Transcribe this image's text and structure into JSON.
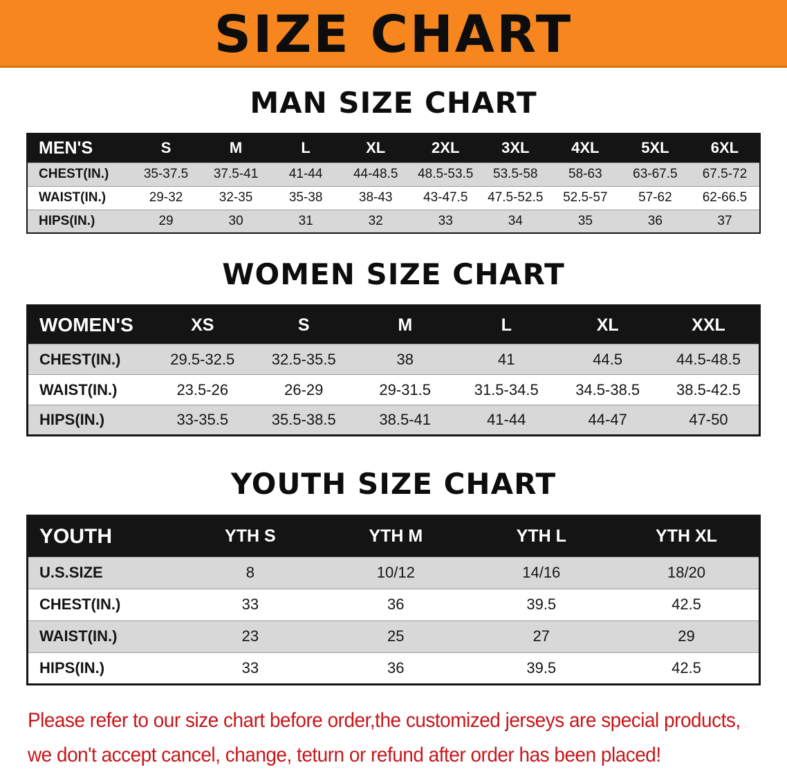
{
  "banner": {
    "title": "SIZE CHART"
  },
  "colors": {
    "banner_bg": "#F6861D",
    "header_bg": "#141414",
    "row_gray": "#D8D8D8",
    "disclaimer_red": "#C8161A"
  },
  "sections": [
    {
      "heading": "MAN SIZE CHART",
      "table": {
        "header": [
          "MEN'S",
          "S",
          "M",
          "L",
          "XL",
          "2XL",
          "3XL",
          "4XL",
          "5XL",
          "6XL"
        ],
        "rows": [
          {
            "label": "CHEST(IN.)",
            "values": [
              "35-37.5",
              "37.5-41",
              "41-44",
              "44-48.5",
              "48.5-53.5",
              "53.5-58",
              "58-63",
              "63-67.5",
              "67.5-72"
            ]
          },
          {
            "label": "WAIST(IN.)",
            "values": [
              "29-32",
              "32-35",
              "35-38",
              "38-43",
              "43-47.5",
              "47.5-52.5",
              "52.5-57",
              "57-62",
              "62-66.5"
            ]
          },
          {
            "label": "HIPS(IN.)",
            "values": [
              "29",
              "30",
              "31",
              "32",
              "33",
              "34",
              "35",
              "36",
              "37"
            ]
          }
        ]
      }
    },
    {
      "heading": "WOMEN SIZE CHART",
      "table": {
        "header": [
          "WOMEN'S",
          "XS",
          "S",
          "M",
          "L",
          "XL",
          "XXL"
        ],
        "rows": [
          {
            "label": "CHEST(IN.)",
            "values": [
              "29.5-32.5",
              "32.5-35.5",
              "38",
              "41",
              "44.5",
              "44.5-48.5"
            ]
          },
          {
            "label": "WAIST(IN.)",
            "values": [
              "23.5-26",
              "26-29",
              "29-31.5",
              "31.5-34.5",
              "34.5-38.5",
              "38.5-42.5"
            ]
          },
          {
            "label": "HIPS(IN.)",
            "values": [
              "33-35.5",
              "35.5-38.5",
              "38.5-41",
              "41-44",
              "44-47",
              "47-50"
            ]
          }
        ]
      }
    },
    {
      "heading": "YOUTH SIZE CHART",
      "table": {
        "header": [
          "YOUTH",
          "YTH S",
          "YTH M",
          "YTH L",
          "YTH XL"
        ],
        "rows": [
          {
            "label": "U.S.SIZE",
            "values": [
              "8",
              "10/12",
              "14/16",
              "18/20"
            ]
          },
          {
            "label": "CHEST(IN.)",
            "values": [
              "33",
              "36",
              "39.5",
              "42.5"
            ]
          },
          {
            "label": "WAIST(IN.)",
            "values": [
              "23",
              "25",
              "27",
              "29"
            ]
          },
          {
            "label": "HIPS(IN.)",
            "values": [
              "33",
              "36",
              "39.5",
              "42.5"
            ]
          }
        ]
      }
    }
  ],
  "disclaimer": {
    "line1": "Please refer to our size chart before order,the customized jerseys are special products,",
    "line2": "we don't accept cancel, change, teturn or refund after order has been placed!"
  }
}
